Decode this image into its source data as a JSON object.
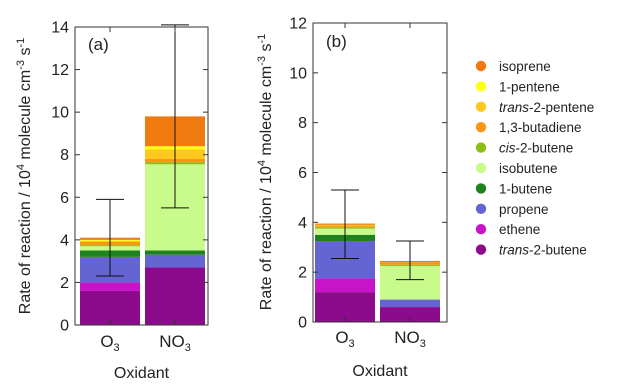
{
  "chart_data": {
    "type": "bar",
    "stacked": true,
    "ylabel_parts": [
      "Rate of reaction / 10",
      "4",
      " molecule cm",
      "-3",
      " s",
      "-1"
    ],
    "xlabel": "Oxidant",
    "categories": [
      {
        "base": "O",
        "sub": "3"
      },
      {
        "base": "NO",
        "sub": "3"
      }
    ],
    "species": [
      {
        "name": "isoprene",
        "italic": "",
        "rest": "isoprene",
        "color": "#f07a10"
      },
      {
        "name": "1-pentene",
        "italic": "",
        "rest": "1-pentene",
        "color": "#ffff14"
      },
      {
        "name": "trans-2-pentene",
        "italic": "trans",
        "rest": "-2-pentene",
        "color": "#ffc81e"
      },
      {
        "name": "1,3-butadiene",
        "italic": "",
        "rest": "1,3-butadiene",
        "color": "#fa9614"
      },
      {
        "name": "cis-2-butene",
        "italic": "cis",
        "rest": "-2-butene",
        "color": "#8cbe14"
      },
      {
        "name": "isobutene",
        "italic": "",
        "rest": "isobutene",
        "color": "#c8fa8c"
      },
      {
        "name": "1-butene",
        "italic": "",
        "rest": "1-butene",
        "color": "#1e821e"
      },
      {
        "name": "propene",
        "italic": "",
        "rest": "propene",
        "color": "#6464d2"
      },
      {
        "name": "ethene",
        "italic": "",
        "rest": "ethene",
        "color": "#c814c8"
      },
      {
        "name": "trans-2-butene",
        "italic": "trans",
        "rest": "-2-butene",
        "color": "#8c0a8c"
      }
    ],
    "panels": [
      {
        "label": "(a)",
        "ylim": [
          0,
          14
        ],
        "yticks": [
          0,
          2,
          4,
          6,
          8,
          10,
          12,
          14
        ],
        "stack_order": [
          "trans-2-butene",
          "ethene",
          "propene",
          "1-butene",
          "isobutene",
          "cis-2-butene",
          "1,3-butadiene",
          "trans-2-pentene",
          "1-pentene",
          "isoprene"
        ],
        "bars": [
          {
            "category": "O3",
            "values": {
              "trans-2-butene": 1.6,
              "ethene": 0.4,
              "propene": 1.2,
              "1-butene": 0.3,
              "isobutene": 0.2,
              "cis-2-butene": 0.05,
              "1,3-butadiene": 0.15,
              "trans-2-pentene": 0.05,
              "1-pentene": 0.05,
              "isoprene": 0.1
            },
            "total": 4.1,
            "error": [
              2.3,
              5.9
            ]
          },
          {
            "category": "NO3",
            "values": {
              "trans-2-butene": 2.7,
              "ethene": 0.0,
              "propene": 0.6,
              "1-butene": 0.2,
              "isobutene": 4.05,
              "cis-2-butene": 0.1,
              "1,3-butadiene": 0.15,
              "trans-2-pentene": 0.45,
              "1-pentene": 0.15,
              "isoprene": 1.4
            },
            "total": 9.8,
            "error": [
              5.5,
              14.1
            ]
          }
        ]
      },
      {
        "label": "(b)",
        "ylim": [
          0,
          12
        ],
        "yticks": [
          0,
          2,
          4,
          6,
          8,
          10,
          12
        ],
        "stack_order": [
          "trans-2-butene",
          "ethene",
          "propene",
          "1-butene",
          "isobutene",
          "cis-2-butene",
          "1,3-butadiene",
          "trans-2-pentene",
          "1-pentene",
          "isoprene"
        ],
        "bars": [
          {
            "category": "O3",
            "values": {
              "trans-2-butene": 1.2,
              "ethene": 0.55,
              "propene": 1.5,
              "1-butene": 0.25,
              "isobutene": 0.25,
              "cis-2-butene": 0.05,
              "1,3-butadiene": 0.05,
              "trans-2-pentene": 0.05,
              "1-pentene": 0.0,
              "isoprene": 0.05
            },
            "total": 3.95,
            "error": [
              2.55,
              5.3
            ]
          },
          {
            "category": "NO3",
            "values": {
              "trans-2-butene": 0.6,
              "ethene": 0.0,
              "propene": 0.3,
              "1-butene": 0.0,
              "isobutene": 1.35,
              "cis-2-butene": 0.05,
              "1,3-butadiene": 0.1,
              "trans-2-pentene": 0.0,
              "1-pentene": 0.0,
              "isoprene": 0.05
            },
            "total": 2.45,
            "error": [
              1.7,
              3.25
            ]
          }
        ]
      }
    ],
    "legend_order": [
      "isoprene",
      "1-pentene",
      "trans-2-pentene",
      "1,3-butadiene",
      "cis-2-butene",
      "isobutene",
      "1-butene",
      "propene",
      "ethene",
      "trans-2-butene"
    ],
    "legend_placement": "right",
    "grid": false
  }
}
